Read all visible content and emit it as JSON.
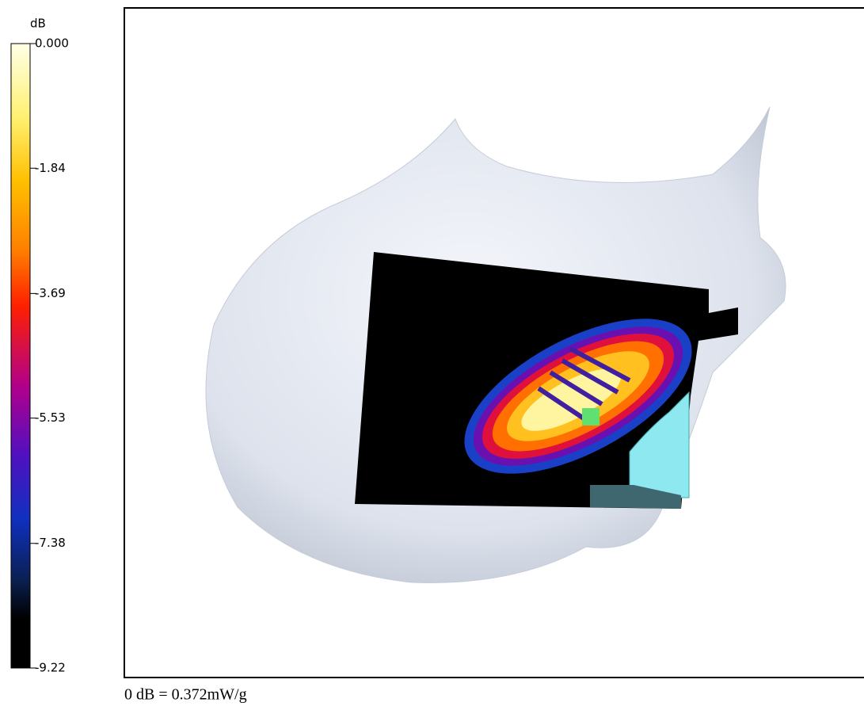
{
  "colorbar": {
    "unit": "dB",
    "ticks": [
      {
        "value": 0,
        "label": "0.000"
      },
      {
        "value": -1.84,
        "label": "-1.84"
      },
      {
        "value": -3.69,
        "label": "-3.69"
      },
      {
        "value": -5.53,
        "label": "-5.53"
      },
      {
        "value": -7.38,
        "label": "-7.38"
      },
      {
        "value": -9.22,
        "label": "-9.22"
      }
    ]
  },
  "footer": "0 dB = 0.372mW/g"
}
